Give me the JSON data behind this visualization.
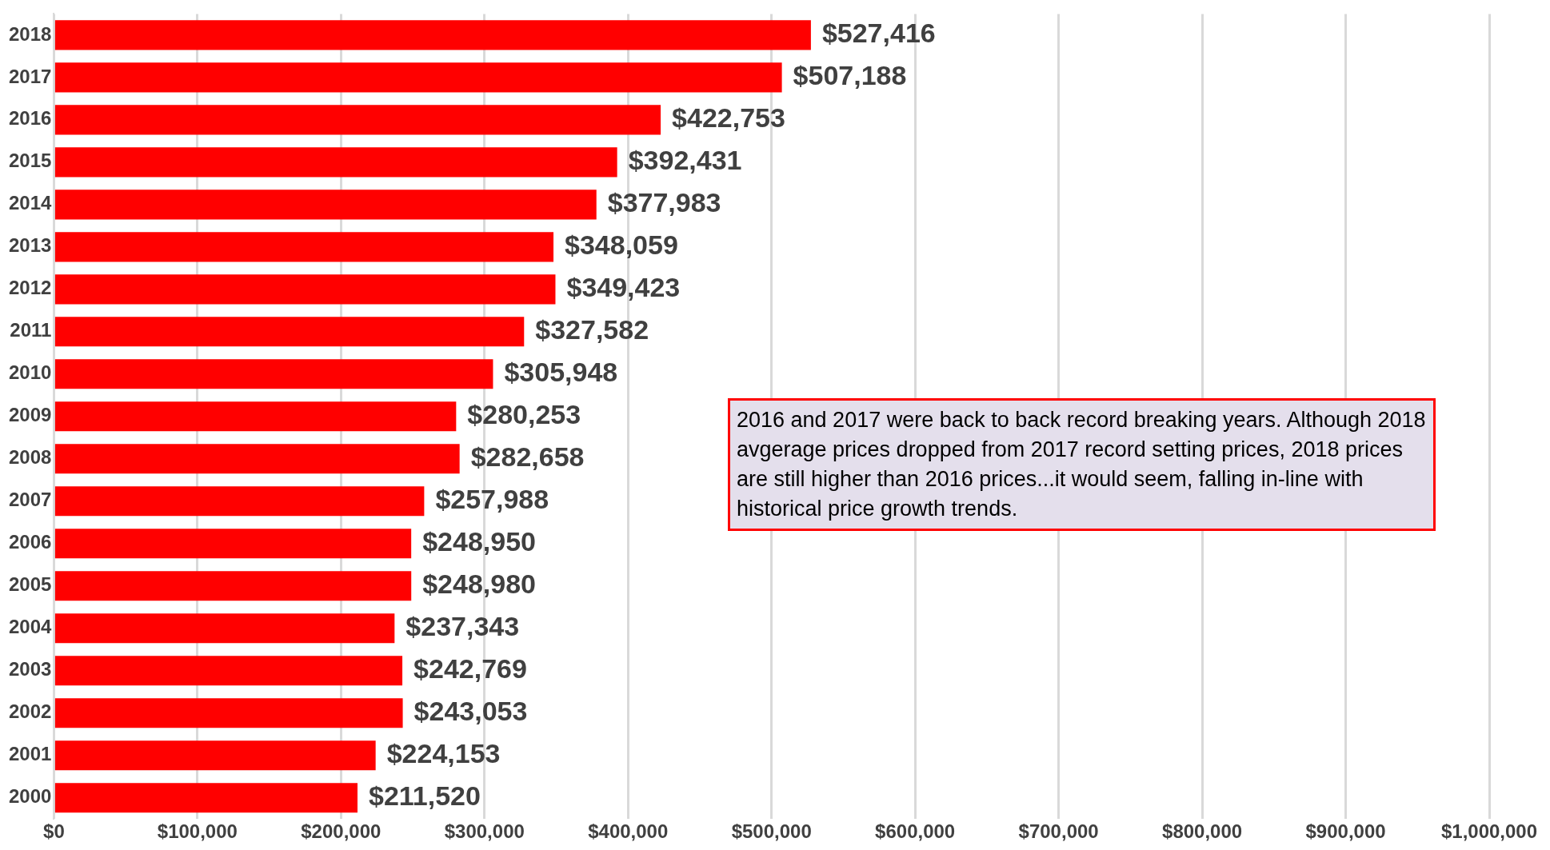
{
  "chart_data": {
    "type": "bar",
    "orientation": "horizontal",
    "categories": [
      "2018",
      "2017",
      "2016",
      "2015",
      "2014",
      "2013",
      "2012",
      "2011",
      "2010",
      "2009",
      "2008",
      "2007",
      "2006",
      "2005",
      "2004",
      "2003",
      "2002",
      "2001",
      "2000"
    ],
    "values": [
      527416,
      507188,
      422753,
      392431,
      377983,
      348059,
      349423,
      327582,
      305948,
      280253,
      282658,
      257988,
      248950,
      248980,
      237343,
      242769,
      243053,
      224153,
      211520
    ],
    "value_labels": [
      "$527,416",
      "$507,188",
      "$422,753",
      "$392,431",
      "$377,983",
      "$348,059",
      "$349,423",
      "$327,582",
      "$305,948",
      "$280,253",
      "$282,658",
      "$257,988",
      "$248,950",
      "$248,980",
      "$237,343",
      "$242,769",
      "$243,053",
      "$224,153",
      "$211,520"
    ],
    "color": "#ff0000",
    "xlim": [
      0,
      1000000
    ],
    "xticks": [
      {
        "value": 0,
        "label": "$0"
      },
      {
        "value": 100000,
        "label": "$100,000"
      },
      {
        "value": 200000,
        "label": "$200,000"
      },
      {
        "value": 300000,
        "label": "$300,000"
      },
      {
        "value": 400000,
        "label": "$400,000"
      },
      {
        "value": 500000,
        "label": "$500,000"
      },
      {
        "value": 600000,
        "label": "$600,000"
      },
      {
        "value": 700000,
        "label": "$700,000"
      },
      {
        "value": 800000,
        "label": "$800,000"
      },
      {
        "value": 900000,
        "label": "$900,000"
      },
      {
        "value": 1000000,
        "label": "$1,000,000"
      }
    ],
    "grid": "x",
    "annotations": [
      "2016 and 2017 were back to  back record breaking years. Although 2018 avgerage prices dropped from 2017 record setting prices, 2018 prices are still higher than 2016 prices...it would seem, falling in-line with historical price growth trends."
    ]
  }
}
